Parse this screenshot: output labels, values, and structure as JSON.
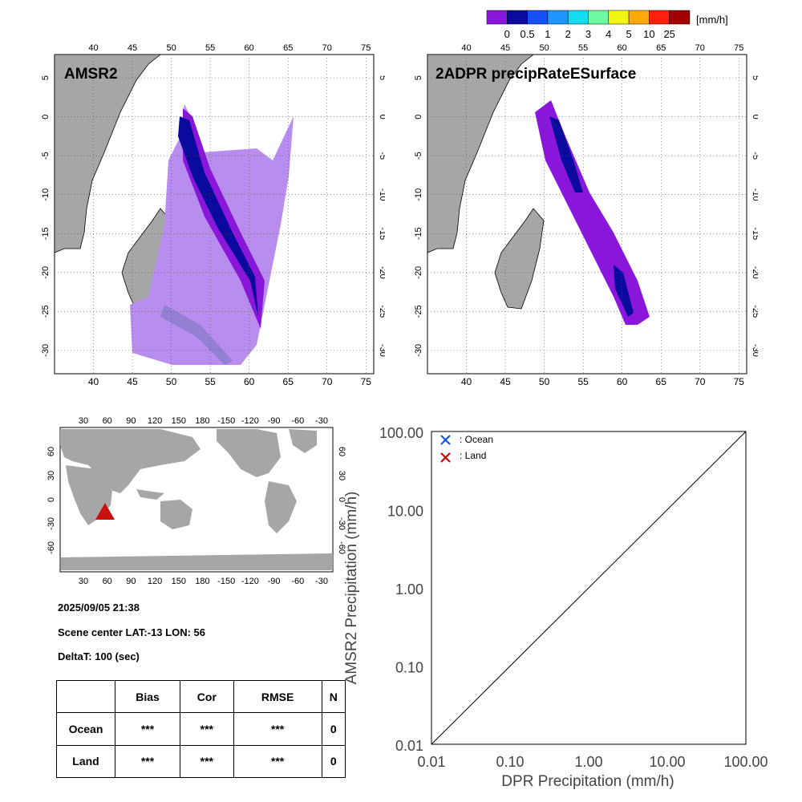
{
  "colorbar": {
    "unit": "[mm/h]",
    "colors": [
      "#8a16dc",
      "#0a0a9e",
      "#1450f5",
      "#1e96ff",
      "#14dcf0",
      "#6efaa0",
      "#f0f514",
      "#ffaa0a",
      "#ff1e0a",
      "#a00000"
    ],
    "labels": [
      "0",
      "0.5",
      "1",
      "2",
      "3",
      "4",
      "5",
      "10",
      "25"
    ]
  },
  "colors": {
    "land": "#a6a6a6",
    "light_precip": "#b98cf0",
    "ocean_marker": "#1050dc",
    "land_marker": "#c80000",
    "scene_marker": "#c81010"
  },
  "map_left": {
    "title": "AMSR2",
    "lon_ticks": [
      "40",
      "45",
      "50",
      "55",
      "60",
      "65",
      "70",
      "75"
    ],
    "lat_ticks": [
      "5",
      "0",
      "-5",
      "-10",
      "-15",
      "-20",
      "-25",
      "-30"
    ]
  },
  "map_right": {
    "title": "2ADPR precipRateESurface",
    "lon_ticks": [
      "40",
      "45",
      "50",
      "55",
      "60",
      "65",
      "70",
      "75"
    ],
    "lat_ticks": [
      "5",
      "0",
      "-5",
      "-10",
      "-15",
      "-20",
      "-25",
      "-30"
    ]
  },
  "world_map": {
    "lon_ticks": [
      "30",
      "60",
      "90",
      "120",
      "150",
      "180",
      "-150",
      "-120",
      "-90",
      "-60",
      "-30"
    ],
    "lat_ticks": [
      "60",
      "30",
      "0",
      "-30",
      "-60"
    ],
    "marker_lat": -13,
    "marker_lon": 56
  },
  "scene": {
    "datetime": "2025/09/05 21:38",
    "center_label": "Scene center LAT:-13   LON:  56",
    "deltat_label": "DeltaT:  100 (sec)"
  },
  "stats_table": {
    "headers": [
      "",
      "Bias",
      "Cor",
      "RMSE",
      "N"
    ],
    "rows": [
      {
        "label": "Ocean",
        "bias": "***",
        "cor": "***",
        "rmse": "***",
        "n": "0"
      },
      {
        "label": "Land",
        "bias": "***",
        "cor": "***",
        "rmse": "***",
        "n": "0"
      }
    ]
  },
  "chart_data": {
    "type": "scatter",
    "xlabel": "DPR Precipitation (mm/h)",
    "ylabel": "AMSR2 Precipitation (mm/h)",
    "xscale": "log",
    "yscale": "log",
    "xlim": [
      0.01,
      100
    ],
    "ylim": [
      0.01,
      100
    ],
    "x_tick_labels": [
      "0.01",
      "0.10",
      "1.00",
      "10.00",
      "100.00"
    ],
    "y_tick_labels": [
      "0.01",
      "0.10",
      "1.00",
      "10.00",
      "100.00"
    ],
    "reference_line": "1:1",
    "legend_placement": "top-left",
    "series": [
      {
        "name": ": Ocean",
        "marker": "x",
        "color": "#1050dc",
        "points": []
      },
      {
        "name": ": Land",
        "marker": "x",
        "color": "#c80000",
        "points": []
      }
    ]
  }
}
